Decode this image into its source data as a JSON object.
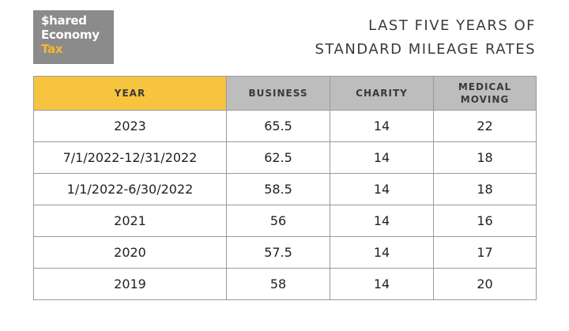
{
  "logo": {
    "line1": "$hared",
    "line2": "Economy",
    "line3": "Tax"
  },
  "heading": {
    "line1": "LAST FIVE YEARS OF",
    "line2": "STANDARD MILEAGE RATES"
  },
  "table": {
    "headers": {
      "year": "YEAR",
      "business": "BUSINESS",
      "charity": "CHARITY",
      "medical_line1": "MEDICAL",
      "medical_line2": "MOVING"
    },
    "rows": [
      {
        "year": "2023",
        "business": "65.5",
        "charity": "14",
        "medical": "22"
      },
      {
        "year": "7/1/2022-12/31/2022",
        "business": "62.5",
        "charity": "14",
        "medical": "18"
      },
      {
        "year": "1/1/2022-6/30/2022",
        "business": "58.5",
        "charity": "14",
        "medical": "18"
      },
      {
        "year": "2021",
        "business": "56",
        "charity": "14",
        "medical": "16"
      },
      {
        "year": "2020",
        "business": "57.5",
        "charity": "14",
        "medical": "17"
      },
      {
        "year": "2019",
        "business": "58",
        "charity": "14",
        "medical": "20"
      }
    ]
  },
  "colors": {
    "year_header": "#f7c440",
    "other_header": "#bdbdbd",
    "logo_bg": "#8b8b8b",
    "logo_accent": "#f5b82e"
  }
}
